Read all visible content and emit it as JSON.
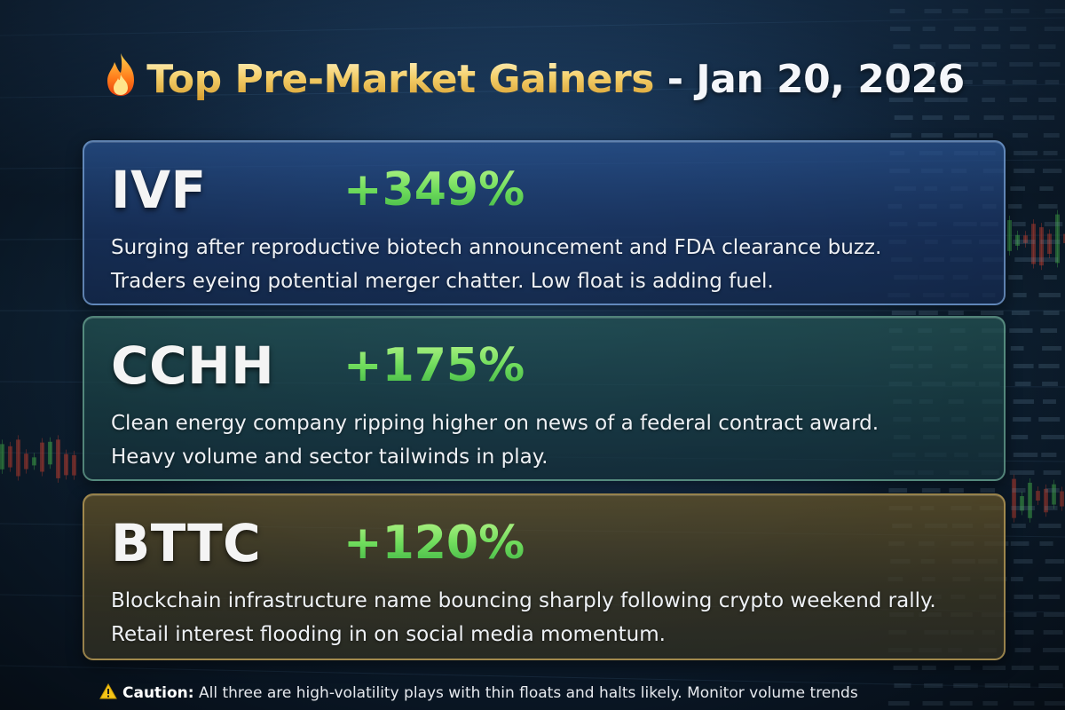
{
  "headline": {
    "icon": "fire-icon",
    "title_gold": "Top Pre-Market Gainers",
    "title_rest": " - Jan 20, 2026"
  },
  "gainers": [
    {
      "ticker": "IVF",
      "change": "+349%",
      "line1": "Surging after reproductive biotech announcement and FDA clearance buzz.",
      "line2": "Traders eyeing potential merger chatter. Low float is adding fuel.",
      "accent": "#3a6fb0"
    },
    {
      "ticker": "CCHH",
      "change": "+175%",
      "line1": "Clean energy company ripping higher on news of a federal contract award.",
      "line2": "Heavy volume and sector tailwinds in play.",
      "accent": "#3f8a7a"
    },
    {
      "ticker": "BTTC",
      "change": "+120%",
      "line1": "Blockchain infrastructure name bouncing sharply following crypto weekend rally.",
      "line2": "Retail interest flooding in on social media momentum.",
      "accent": "#b09040"
    }
  ],
  "caution": {
    "icon": "warning-icon",
    "label": "Caution:",
    "text": " All three are high-volatility plays with thin floats and halts likely. Monitor volume trends"
  },
  "colors": {
    "gain_green": "#6fdc5c",
    "gold": "#f4cf6a"
  }
}
